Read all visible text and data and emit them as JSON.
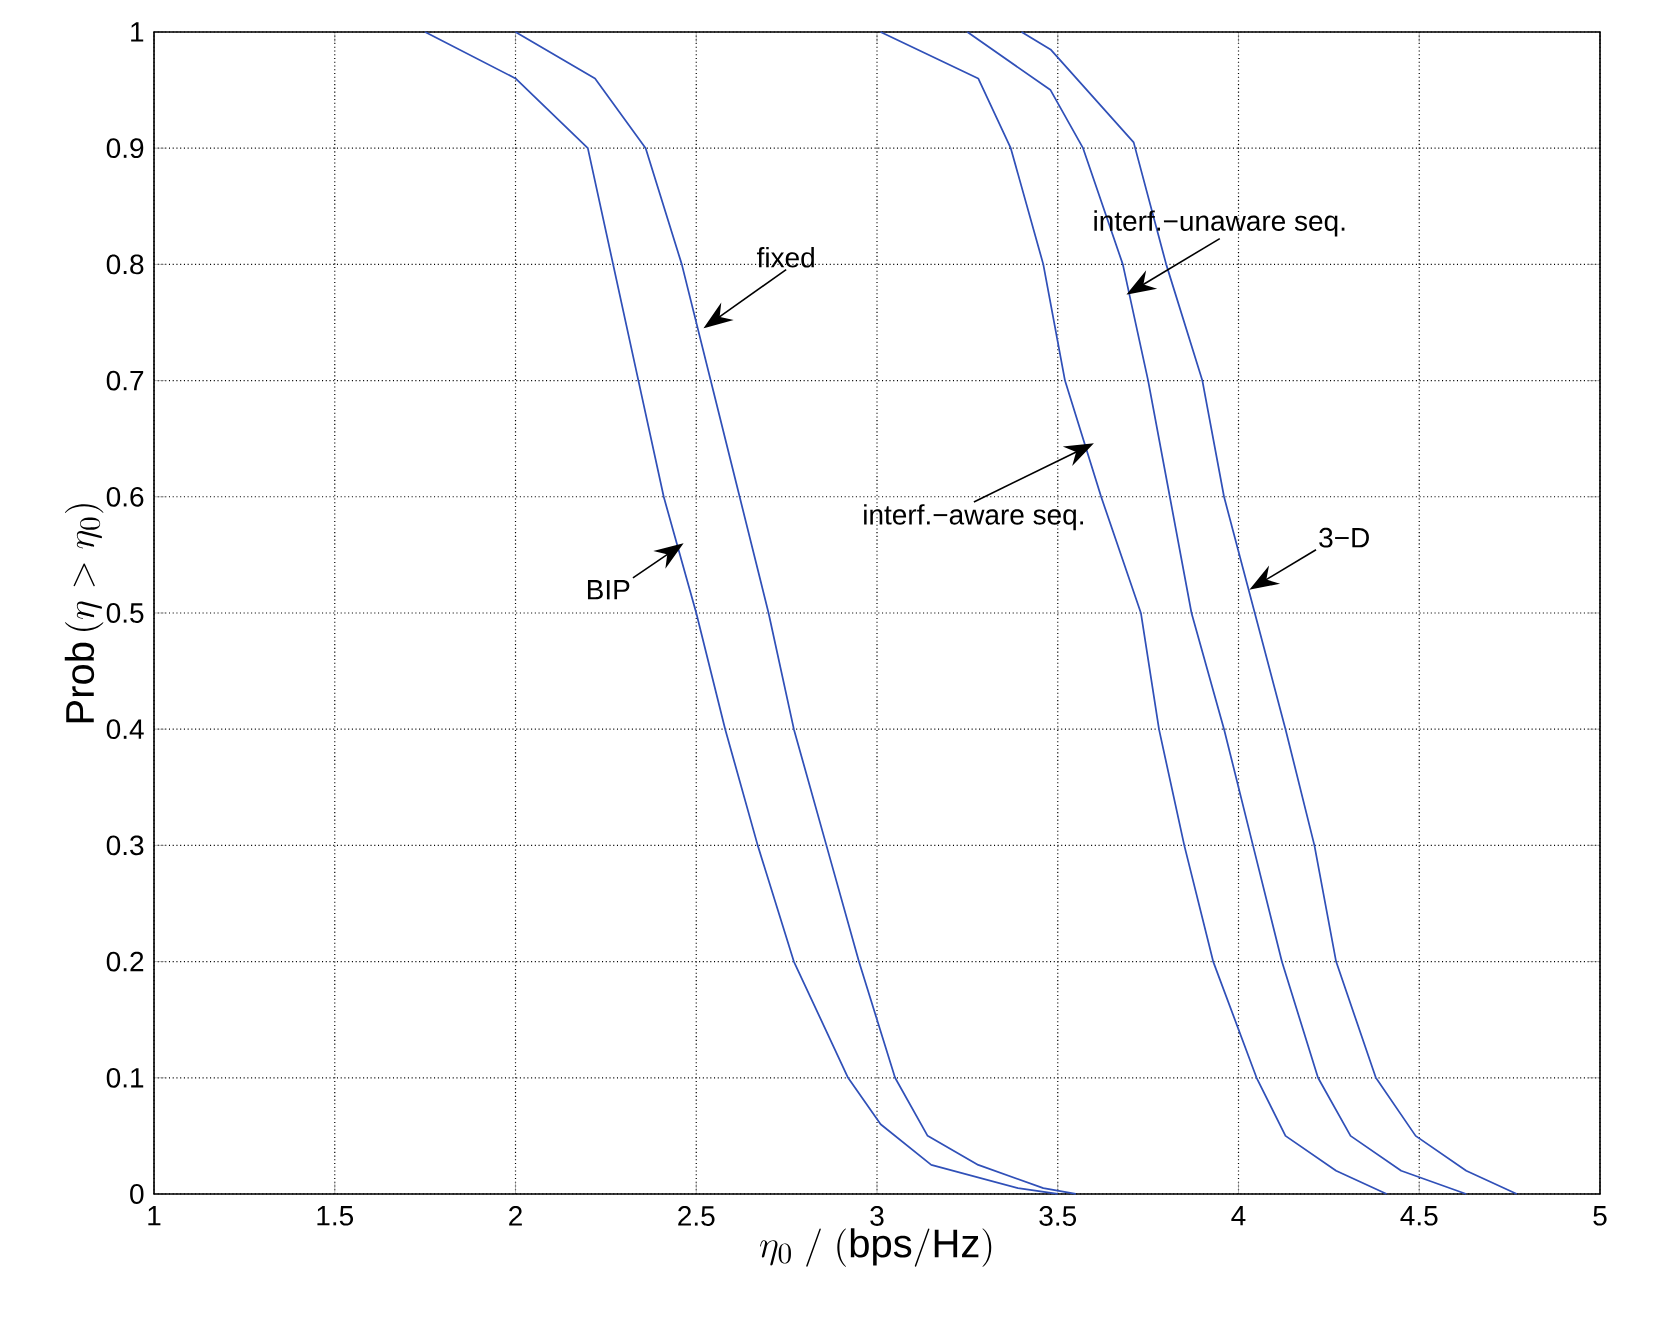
{
  "chart_data": {
    "type": "line",
    "xlabel": "\\eta_0\\;/\\;(\\mathrm{bps/Hz})",
    "ylabel": "\\mathrm{Prob}\\,(\\eta > \\eta_0)",
    "xlim": [
      1,
      5
    ],
    "ylim": [
      0,
      1
    ],
    "xticks": [
      1,
      1.5,
      2,
      2.5,
      3,
      3.5,
      4,
      4.5,
      5
    ],
    "yticks": [
      0,
      0.1,
      0.2,
      0.3,
      0.4,
      0.5,
      0.6,
      0.7,
      0.8,
      0.9,
      1
    ],
    "grid": true,
    "marker": "none",
    "line_style": "solid",
    "series": [
      {
        "color": "#3050b8",
        "x": [
          1.75,
          2.0,
          2.2,
          2.27,
          2.34,
          2.41,
          2.5,
          2.58,
          2.67,
          2.77,
          2.92,
          3.01,
          3.15,
          3.39,
          3.5
        ],
        "values": [
          1,
          0.96,
          0.9,
          0.8,
          0.7,
          0.6,
          0.5,
          0.4,
          0.3,
          0.2,
          0.1,
          0.06,
          0.025,
          0.005,
          0
        ]
      },
      {
        "color": "#3050b8",
        "x": [
          2.0,
          2.22,
          2.36,
          2.46,
          2.54,
          2.62,
          2.7,
          2.77,
          2.86,
          2.95,
          3.05,
          3.14,
          3.28,
          3.46,
          3.55
        ],
        "values": [
          1,
          0.96,
          0.9,
          0.8,
          0.7,
          0.6,
          0.5,
          0.4,
          0.3,
          0.2,
          0.1,
          0.05,
          0.025,
          0.005,
          0
        ]
      },
      {
        "color": "#3050b8",
        "x": [
          3.01,
          3.28,
          3.37,
          3.46,
          3.52,
          3.62,
          3.73,
          3.78,
          3.85,
          3.93,
          4.05,
          4.13,
          4.27,
          4.41
        ],
        "values": [
          1,
          0.96,
          0.9,
          0.8,
          0.7,
          0.6,
          0.5,
          0.4,
          0.3,
          0.2,
          0.1,
          0.05,
          0.02,
          0
        ]
      },
      {
        "color": "#3050b8",
        "x": [
          3.25,
          3.48,
          3.57,
          3.68,
          3.75,
          3.81,
          3.87,
          3.96,
          4.04,
          4.12,
          4.22,
          4.31,
          4.45,
          4.63
        ],
        "values": [
          1,
          0.95,
          0.9,
          0.8,
          0.7,
          0.6,
          0.5,
          0.4,
          0.3,
          0.2,
          0.1,
          0.05,
          0.02,
          0
        ]
      },
      {
        "color": "#3050b8",
        "x": [
          3.4,
          3.48,
          3.71,
          3.8,
          3.9,
          3.96,
          4.045,
          4.13,
          4.21,
          4.27,
          4.38,
          4.49,
          4.63,
          4.77
        ],
        "values": [
          1,
          0.985,
          0.905,
          0.8,
          0.7,
          0.6,
          0.5,
          0.4,
          0.3,
          0.2,
          0.1,
          0.05,
          0.02,
          0
        ]
      }
    ],
    "annotations": [
      {
        "text": "fixed",
        "x": 2.52,
        "y": 0.745
      },
      {
        "text": "BIP",
        "x": 2.465,
        "y": 0.56
      },
      {
        "text": "interf.−aware seq.",
        "x": 3.6,
        "y": 0.646
      },
      {
        "text": "interf.−unaware seq.",
        "x": 3.69,
        "y": 0.774
      },
      {
        "text": "3−D",
        "x": 4.03,
        "y": 0.52
      }
    ]
  }
}
